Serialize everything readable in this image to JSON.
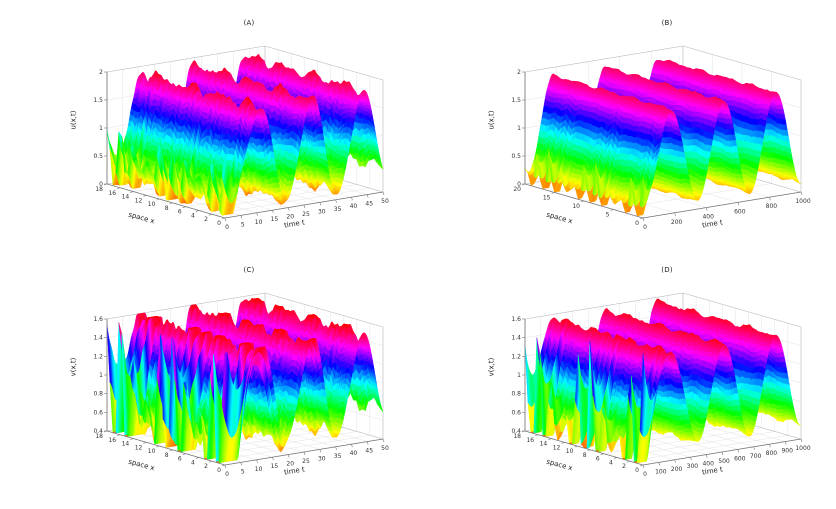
{
  "style": {
    "background": "#ffffff",
    "grid_color": "#e3e3ea",
    "box_color": "#b5b5bd",
    "axis_color": "#777777",
    "tick_text_color": "#333333"
  },
  "chart_data": [
    {
      "id": "A",
      "type": "surface",
      "title": "(A)",
      "xlabel": "time t",
      "ylabel": "space x",
      "zlabel": "u(x,t)",
      "colormap": "hsv",
      "t_range": [
        0,
        50
      ],
      "x_range": [
        0,
        18
      ],
      "z_range": [
        0,
        2
      ],
      "t_ticks": [
        0,
        5,
        10,
        15,
        20,
        25,
        30,
        35,
        40,
        45,
        50
      ],
      "x_ticks": [
        0,
        2,
        4,
        6,
        8,
        10,
        12,
        14,
        16,
        18
      ],
      "z_ticks": [
        0,
        0.5,
        1,
        1.5,
        2
      ],
      "wave": {
        "period": 16.5,
        "peak": 11,
        "base": 1.0,
        "amplitude": 0.85,
        "ripple": 0.07
      },
      "transient": {
        "amplitude": 0.6,
        "decay": 5,
        "spatial_freq": 1
      }
    },
    {
      "id": "B",
      "type": "surface",
      "title": "(B)",
      "xlabel": "time t",
      "ylabel": "space x",
      "zlabel": "u(x,t)",
      "colormap": "hsv",
      "t_range": [
        0,
        1000
      ],
      "x_range": [
        0,
        20
      ],
      "z_range": [
        0,
        2
      ],
      "t_ticks": [
        0,
        200,
        400,
        600,
        800,
        1000
      ],
      "x_ticks": [
        0,
        5,
        10,
        15,
        20
      ],
      "z_ticks": [
        0,
        0.5,
        1,
        1.5,
        2
      ],
      "wave": {
        "period": 330,
        "peak": 180,
        "base": 1.0,
        "amplitude": 0.85,
        "ripple": 0.02
      },
      "transient": {
        "amplitude": 0.6,
        "decay": 45,
        "spatial_freq": 1
      }
    },
    {
      "id": "C",
      "type": "surface",
      "title": "(C)",
      "xlabel": "time t",
      "ylabel": "space x",
      "zlabel": "v(x,t)",
      "colormap": "hsv",
      "t_range": [
        0,
        50
      ],
      "x_range": [
        0,
        18
      ],
      "z_range": [
        0.4,
        1.6
      ],
      "t_ticks": [
        0,
        5,
        10,
        15,
        20,
        25,
        30,
        35,
        40,
        45,
        50
      ],
      "x_ticks": [
        0,
        2,
        4,
        6,
        8,
        10,
        12,
        14,
        16,
        18
      ],
      "z_ticks": [
        0.4,
        0.6,
        0.8,
        1,
        1.2,
        1.4,
        1.6
      ],
      "wave": {
        "period": 16.5,
        "peak": 11,
        "base": 1.05,
        "amplitude": 0.5,
        "ripple": 0.06
      },
      "transient": {
        "amplitude": 1.1,
        "decay": 6,
        "spatial_freq": 1
      }
    },
    {
      "id": "D",
      "type": "surface",
      "title": "(D)",
      "xlabel": "time t",
      "ylabel": "space x",
      "zlabel": "v(x,t)",
      "colormap": "hsv",
      "t_range": [
        0,
        1000
      ],
      "x_range": [
        0,
        18
      ],
      "z_range": [
        0.4,
        1.6
      ],
      "t_ticks": [
        0,
        100,
        200,
        300,
        400,
        500,
        600,
        700,
        800,
        900,
        1000
      ],
      "x_ticks": [
        0,
        2,
        4,
        6,
        8,
        10,
        12,
        14,
        16,
        18
      ],
      "z_ticks": [
        0.4,
        0.6,
        0.8,
        1,
        1.2,
        1.4,
        1.6
      ],
      "wave": {
        "period": 330,
        "peak": 180,
        "base": 1.05,
        "amplitude": 0.5,
        "ripple": 0.02
      },
      "transient": {
        "amplitude": 1.1,
        "decay": 55,
        "spatial_freq": 1
      }
    }
  ]
}
